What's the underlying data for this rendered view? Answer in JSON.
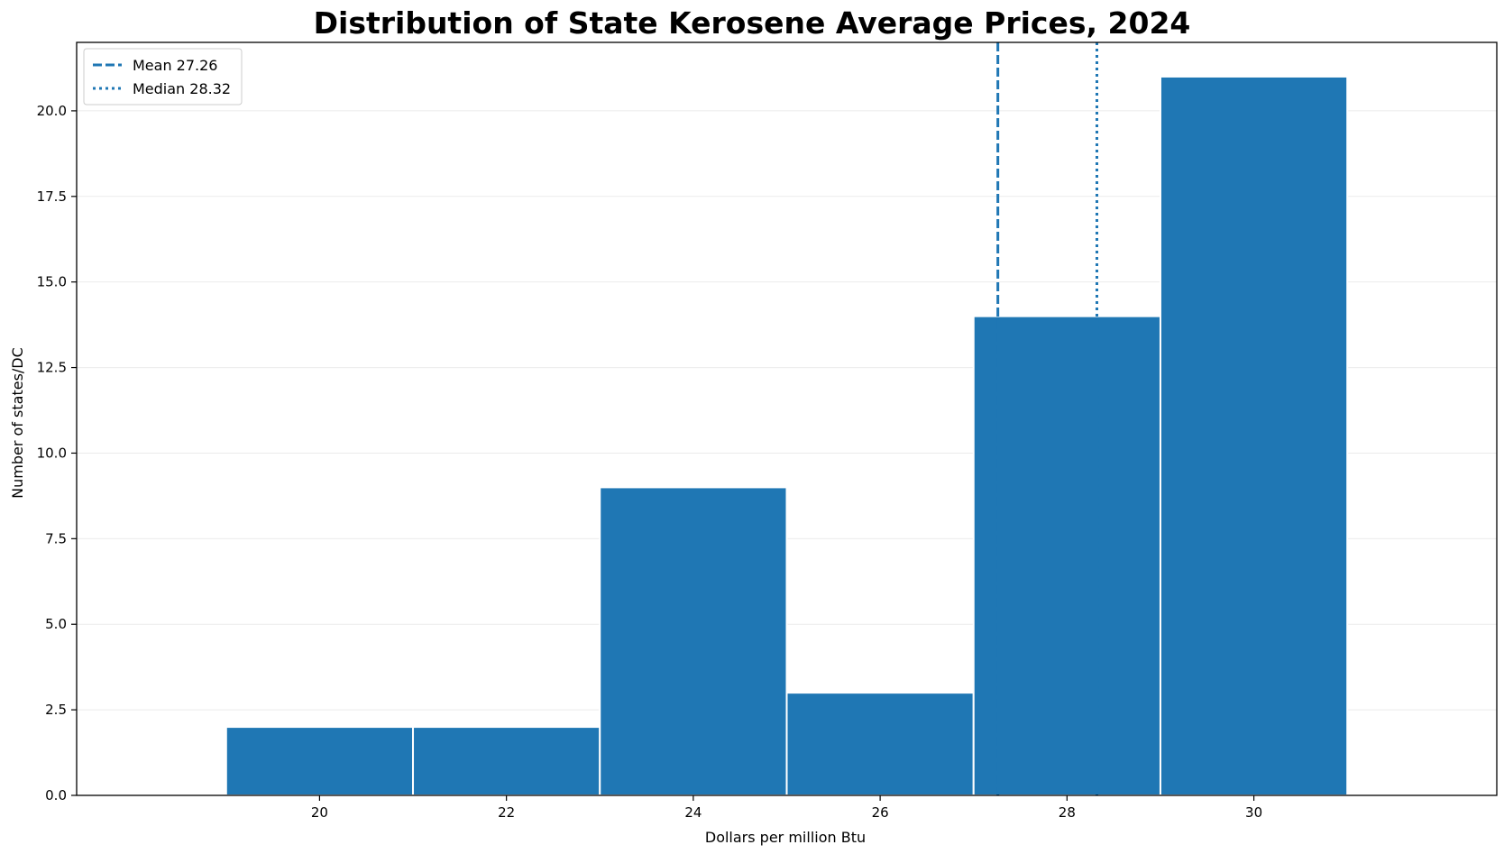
{
  "chart_data": {
    "type": "bar",
    "title": "Distribution of State Kerosene Average Prices, 2024",
    "xlabel": "Dollars per million Btu",
    "ylabel": "Number of states/DC",
    "bins": [
      {
        "start": 19,
        "end": 21,
        "count": 2
      },
      {
        "start": 21,
        "end": 23,
        "count": 2
      },
      {
        "start": 23,
        "end": 25,
        "count": 9
      },
      {
        "start": 25,
        "end": 27,
        "count": 3
      },
      {
        "start": 27,
        "end": 29,
        "count": 14
      },
      {
        "start": 29,
        "end": 31,
        "count": 21
      }
    ],
    "xlim": [
      17.4,
      32.6
    ],
    "ylim": [
      0,
      22
    ],
    "xticks": [
      20,
      22,
      24,
      26,
      28,
      30
    ],
    "xtick_labels": [
      "20",
      "22",
      "24",
      "26",
      "28",
      "30"
    ],
    "yticks": [
      0,
      2.5,
      5,
      7.5,
      10,
      12.5,
      15,
      17.5,
      20
    ],
    "ytick_labels": [
      "0.0",
      "2.5",
      "5.0",
      "7.5",
      "10.0",
      "12.5",
      "15.0",
      "17.5",
      "20.0"
    ],
    "reference_lines": [
      {
        "label": "Mean 27.26",
        "value": 27.26,
        "style": "dashed"
      },
      {
        "label": "Median 28.32",
        "value": 28.32,
        "style": "dotted"
      }
    ],
    "grid": "horizontal",
    "legend_position": "top-left",
    "colors": {
      "bar": "#1f77b4",
      "line": "#1f77b4",
      "grid": "#ebebeb"
    }
  }
}
